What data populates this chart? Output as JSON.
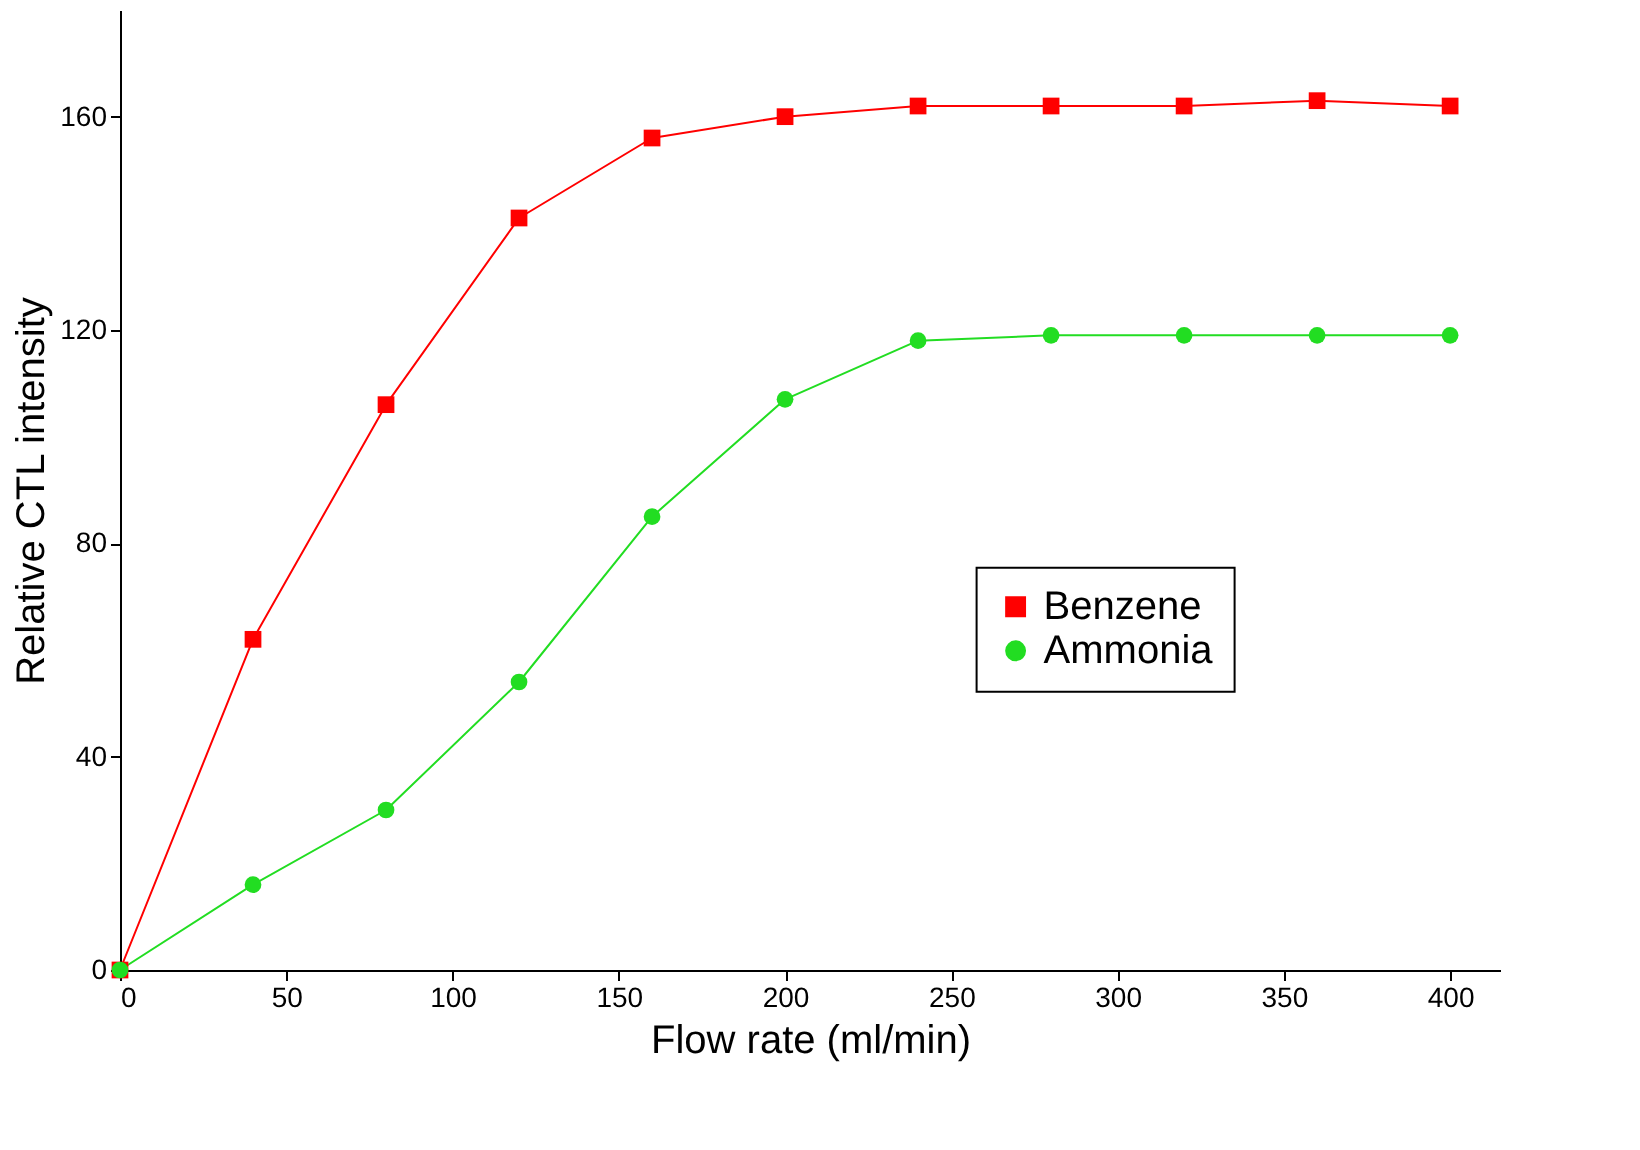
{
  "chart_data": {
    "type": "line",
    "xlabel": "Flow rate (ml/min)",
    "ylabel": "Relative CTL intensity",
    "x": [
      0,
      40,
      80,
      120,
      160,
      200,
      240,
      280,
      320,
      360,
      400
    ],
    "series": [
      {
        "name": "Benzene",
        "color": "#ff0000",
        "marker": "square",
        "values": [
          0,
          62,
          106,
          141,
          156,
          160,
          162,
          162,
          162,
          163,
          162
        ]
      },
      {
        "name": "Ammonia",
        "color": "#22dd22",
        "marker": "circle",
        "values": [
          0,
          16,
          30,
          54,
          85,
          107,
          118,
          119,
          119,
          119,
          119
        ]
      }
    ],
    "xlim": [
      0,
      415
    ],
    "ylim": [
      0,
      180
    ],
    "xticks": [
      0,
      50,
      100,
      150,
      200,
      250,
      300,
      350,
      400
    ],
    "yticks": [
      0,
      40,
      80,
      120,
      160
    ],
    "grid": false,
    "legend": "right",
    "line_style": "solid"
  }
}
